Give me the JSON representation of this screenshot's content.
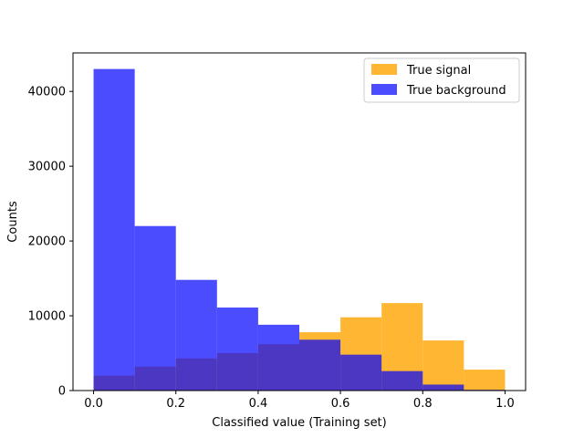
{
  "chart_data": {
    "type": "bar",
    "title": "",
    "xlabel": "Classified value (Training set)",
    "ylabel": "Counts",
    "xlim": [
      -0.05,
      1.05
    ],
    "ylim": [
      0,
      45150
    ],
    "x_ticks": [
      0.0,
      0.2,
      0.4,
      0.6,
      0.8,
      1.0
    ],
    "x_tick_labels": [
      "0.0",
      "0.2",
      "0.4",
      "0.6",
      "0.8",
      "1.0"
    ],
    "y_ticks": [
      0,
      10000,
      20000,
      30000,
      40000
    ],
    "y_tick_labels": [
      "0",
      "10000",
      "20000",
      "30000",
      "40000"
    ],
    "bin_edges": [
      0.0,
      0.1,
      0.2,
      0.3,
      0.4,
      0.5,
      0.6,
      0.7,
      0.8,
      0.9,
      1.0
    ],
    "legend_position": "top-right",
    "grid": false,
    "series": [
      {
        "name": "True signal",
        "color": "#ffa500",
        "opacity": 0.8,
        "values": [
          2000,
          3200,
          4300,
          5000,
          6200,
          7800,
          9800,
          11700,
          6700,
          2800
        ]
      },
      {
        "name": "True background",
        "color": "#0000ff",
        "opacity": 0.7,
        "values": [
          43000,
          22000,
          14800,
          11100,
          8800,
          6800,
          4800,
          2600,
          800,
          100
        ]
      }
    ]
  }
}
